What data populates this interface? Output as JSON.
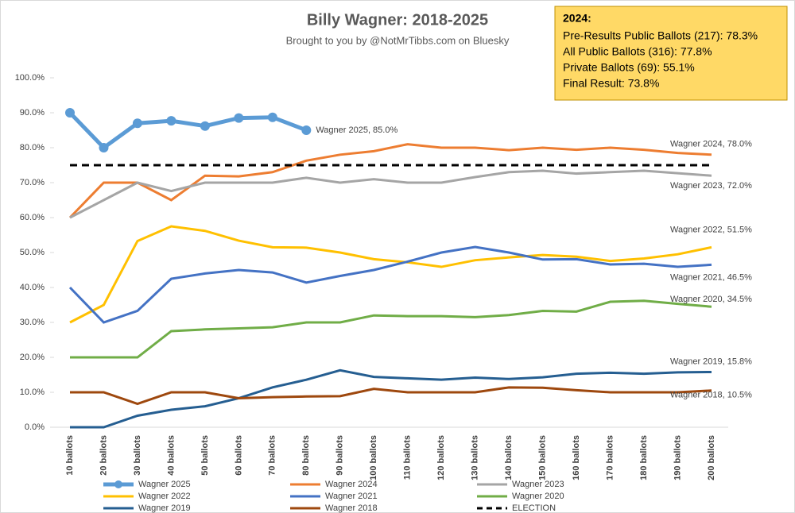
{
  "chart_data": {
    "type": "line",
    "title": "Billy Wagner: 2018-2025",
    "subtitle": "Brought to you by @NotMrTibbs.com on Bluesky",
    "categories": [
      "10 ballots",
      "20 ballots",
      "30 ballots",
      "40 ballots",
      "50 ballots",
      "60 ballots",
      "70 ballots",
      "80 ballots",
      "90 ballots",
      "100 ballots",
      "110 ballots",
      "120 ballots",
      "130 ballots",
      "140 ballots",
      "150 ballots",
      "160 ballots",
      "170 ballots",
      "180 ballots",
      "190 ballots",
      "200 ballots"
    ],
    "ylim": [
      0,
      100
    ],
    "yticks": [
      {
        "value": 0,
        "label": "0.0%"
      },
      {
        "value": 10,
        "label": "10.0%"
      },
      {
        "value": 20,
        "label": "20.0%"
      },
      {
        "value": 30,
        "label": "30.0%"
      },
      {
        "value": 40,
        "label": "40.0%"
      },
      {
        "value": 50,
        "label": "50.0%"
      },
      {
        "value": 60,
        "label": "60.0%"
      },
      {
        "value": 70,
        "label": "70.0%"
      },
      {
        "value": 80,
        "label": "80.0%"
      },
      {
        "value": 90,
        "label": "90.0%"
      },
      {
        "value": 100,
        "label": "100.0%"
      }
    ],
    "series": [
      {
        "name": "Wagner 2025",
        "color": "#5b9bd5",
        "end_label": "Wagner 2025, 85.0%",
        "values": [
          90,
          80,
          87,
          87.7,
          86.2,
          88.5,
          88.7,
          85.0,
          null,
          null,
          null,
          null,
          null,
          null,
          null,
          null,
          null,
          null,
          null,
          null
        ]
      },
      {
        "name": "Wagner 2024",
        "color": "#ed7d31",
        "end_label": "Wagner 2024, 78.0%",
        "values": [
          60,
          70,
          70,
          65,
          72,
          71.8,
          73,
          76.3,
          78,
          79,
          81,
          80,
          80,
          79.3,
          80,
          79.4,
          80,
          79.4,
          78.5,
          78.0
        ]
      },
      {
        "name": "Wagner 2023",
        "color": "#a5a5a5",
        "end_label": "Wagner 2023, 72.0%",
        "values": [
          60,
          65,
          70,
          67.6,
          70,
          70,
          70,
          71.4,
          70,
          71,
          70,
          70,
          71.6,
          73,
          73.4,
          72.6,
          73,
          73.4,
          72.7,
          72.0
        ]
      },
      {
        "name": "Wagner 2022",
        "color": "#ffc000",
        "end_label": "Wagner 2022, 51.5%",
        "values": [
          30,
          35,
          53.3,
          57.5,
          56.2,
          53.4,
          51.5,
          51.4,
          50,
          48.1,
          47.2,
          45.9,
          47.8,
          48.6,
          49.3,
          48.8,
          47.6,
          48.3,
          49.5,
          51.5
        ]
      },
      {
        "name": "Wagner 2021",
        "color": "#4472c4",
        "end_label": "Wagner 2021, 46.5%",
        "values": [
          40,
          30,
          33.3,
          42.5,
          44,
          45,
          44.3,
          41.4,
          43.3,
          45,
          47.4,
          50,
          51.6,
          50,
          48,
          48.1,
          46.6,
          46.8,
          45.9,
          46.5
        ]
      },
      {
        "name": "Wagner 2020",
        "color": "#70ad47",
        "end_label": "Wagner 2020, 34.5%",
        "values": [
          20,
          20,
          20,
          27.5,
          28,
          28.3,
          28.6,
          30,
          30,
          32,
          31.8,
          31.8,
          31.5,
          32.1,
          33.3,
          33.1,
          35.9,
          36.2,
          35.3,
          34.5
        ]
      },
      {
        "name": "Wagner 2019",
        "color": "#255e91",
        "end_label": "Wagner 2019, 15.8%",
        "values": [
          0,
          0,
          3.3,
          5,
          6,
          8.3,
          11.4,
          13.6,
          16.3,
          14.4,
          14,
          13.6,
          14.2,
          13.8,
          14.3,
          15.3,
          15.6,
          15.3,
          15.7,
          15.8
        ]
      },
      {
        "name": "Wagner 2018",
        "color": "#9e480e",
        "end_label": "Wagner 2018, 10.5%",
        "values": [
          10,
          10,
          6.7,
          10,
          10,
          8.3,
          8.6,
          8.8,
          8.9,
          11,
          10,
          10,
          10,
          11.4,
          11.3,
          10.6,
          10,
          10,
          10,
          10.5
        ]
      },
      {
        "name": "ELECTION",
        "color": "#000000",
        "dashed": true,
        "values": [
          75,
          75,
          75,
          75,
          75,
          75,
          75,
          75,
          75,
          75,
          75,
          75,
          75,
          75,
          75,
          75,
          75,
          75,
          75,
          75
        ]
      }
    ],
    "info_box": {
      "title": "2024:",
      "lines": [
        "Pre-Results Public Ballots (217): 78.3%",
        "All Public Ballots (316): 77.8%",
        "Private Ballots (69): 55.1%",
        "Final Result: 73.8%"
      ]
    }
  }
}
